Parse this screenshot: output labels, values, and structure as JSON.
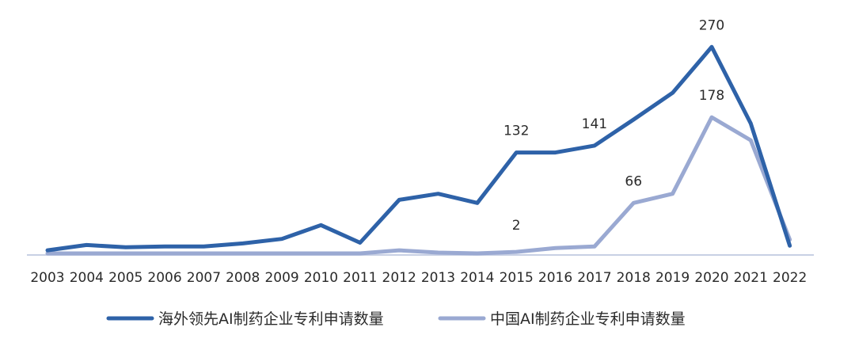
{
  "chart_data": {
    "type": "line",
    "categories": [
      "2003",
      "2004",
      "2005",
      "2006",
      "2007",
      "2008",
      "2009",
      "2010",
      "2011",
      "2012",
      "2013",
      "2014",
      "2015",
      "2016",
      "2017",
      "2018",
      "2019",
      "2020",
      "2021",
      "2022"
    ],
    "series": [
      {
        "name": "海外领先AI制药企业专利申请数量",
        "color": "#2e62a8",
        "values": [
          4,
          11,
          8,
          9,
          9,
          13,
          19,
          37,
          14,
          70,
          78,
          66,
          132,
          132,
          141,
          175,
          210,
          270,
          170,
          10
        ],
        "labels": [
          {
            "index": 12,
            "text": "132"
          },
          {
            "index": 14,
            "text": "141"
          },
          {
            "index": 17,
            "text": "270"
          }
        ]
      },
      {
        "name": "中国AI制药企业专利申请数量",
        "color": "#9aa9d2",
        "values": [
          0,
          0,
          0,
          0,
          0,
          0,
          0,
          0,
          0,
          4,
          1,
          0,
          2,
          7,
          9,
          66,
          78,
          178,
          148,
          18
        ],
        "labels": [
          {
            "index": 12,
            "text": "2"
          },
          {
            "index": 15,
            "text": "66"
          },
          {
            "index": 17,
            "text": "178"
          }
        ]
      }
    ],
    "ylim": [
      0,
      290
    ],
    "grid": false,
    "legend_position": "bottom"
  }
}
